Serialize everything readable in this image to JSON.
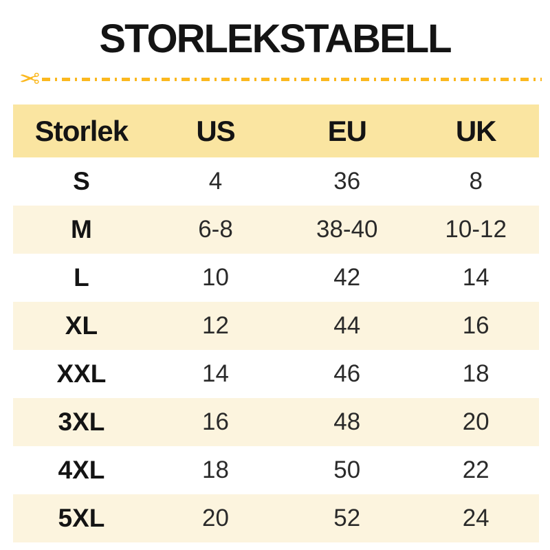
{
  "title": "STORLEKSTABELL",
  "cut_line": {
    "scissors_glyph": "✂"
  },
  "colors": {
    "accent_gold": "#fbb81f",
    "header_bg": "#fae5a1",
    "row_alt_bg": "#fcf4de",
    "text": "#141414",
    "background": "#ffffff"
  },
  "chart_data": {
    "type": "table",
    "title": "STORLEKSTABELL",
    "columns": [
      "Storlek",
      "US",
      "EU",
      "UK"
    ],
    "rows": [
      [
        "S",
        "4",
        "36",
        "8"
      ],
      [
        "M",
        "6-8",
        "38-40",
        "10-12"
      ],
      [
        "L",
        "10",
        "42",
        "14"
      ],
      [
        "XL",
        "12",
        "44",
        "16"
      ],
      [
        "XXL",
        "14",
        "46",
        "18"
      ],
      [
        "3XL",
        "16",
        "48",
        "20"
      ],
      [
        "4XL",
        "18",
        "50",
        "22"
      ],
      [
        "5XL",
        "20",
        "52",
        "24"
      ]
    ]
  }
}
